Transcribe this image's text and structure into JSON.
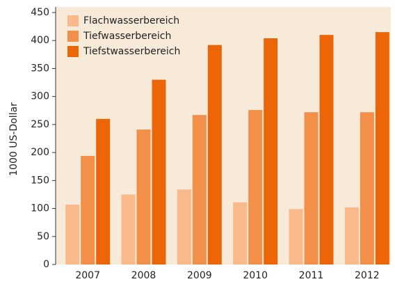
{
  "chart_data": {
    "type": "bar",
    "y_label": "1000 US-Dollar",
    "categories": [
      "2007",
      "2008",
      "2009",
      "2010",
      "2011",
      "2012"
    ],
    "series": [
      {
        "name": "Flachwasserbereich",
        "color": "#f9b98a",
        "values": [
          107,
          125,
          134,
          111,
          99,
          102
        ]
      },
      {
        "name": "Tiefwasserbereich",
        "color": "#f2904a",
        "values": [
          194,
          241,
          267,
          276,
          272,
          272
        ]
      },
      {
        "name": "Tiefstwasserbereich",
        "color": "#ec6608",
        "values": [
          260,
          330,
          392,
          404,
          410,
          415
        ]
      }
    ],
    "ylim": [
      0,
      450
    ],
    "yticks": [
      0,
      50,
      100,
      150,
      200,
      250,
      300,
      350,
      400,
      450
    ],
    "legend": "upper left"
  }
}
